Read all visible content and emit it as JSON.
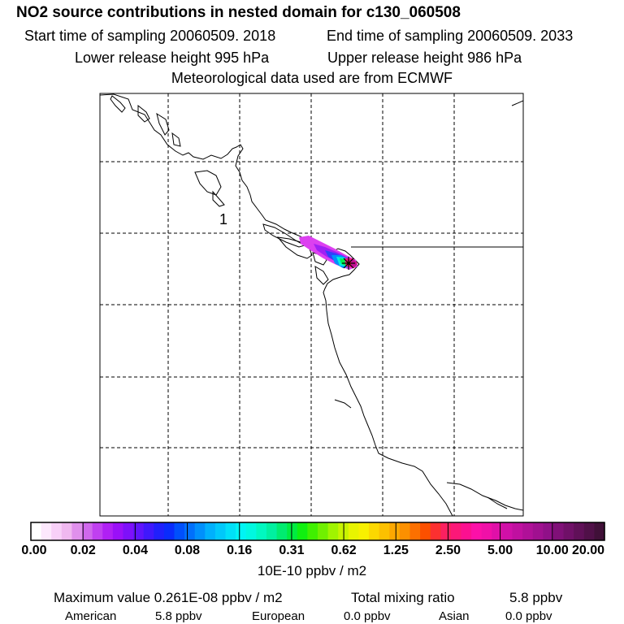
{
  "header": {
    "title": "NO2 source contributions in nested domain for c130_060508",
    "start_time": "Start time of sampling 20060509.  2018",
    "end_time": "End time of sampling 20060509.  2033",
    "lower_height": "Lower release height  995 hPa",
    "upper_height": "Upper release height  986 hPa",
    "met_data": "Meteorological data used are from ECMWF"
  },
  "map": {
    "marker_label": "1",
    "release_marker": "star-icon"
  },
  "colorbar": {
    "ticks": [
      "0.00",
      "0.02",
      "0.04",
      "0.08",
      "0.16",
      "0.31",
      "0.62",
      "1.25",
      "2.50",
      "5.00",
      "10.00",
      "20.00"
    ],
    "unit": "10E-10 ppbv / m2",
    "colors": [
      "#ffffff",
      "#fde8fd",
      "#f8d0f8",
      "#f0b8f0",
      "#e090ec",
      "#d068ec",
      "#c040f0",
      "#b020f4",
      "#9a10f8",
      "#7e10fa",
      "#6014fc",
      "#4018fc",
      "#2020fc",
      "#0a2cfc",
      "#0050fc",
      "#0070fc",
      "#0090fc",
      "#00b0fc",
      "#00c8fa",
      "#00e0f8",
      "#00f4f4",
      "#00f8e0",
      "#00f8c0",
      "#00f0a0",
      "#00ec70",
      "#00ec40",
      "#10f010",
      "#40f000",
      "#70f000",
      "#a0f400",
      "#c8f400",
      "#e8f400",
      "#f8f000",
      "#fcd800",
      "#fcc000",
      "#fca800",
      "#fc9000",
      "#fc7000",
      "#fc5000",
      "#fc3030",
      "#fc2060",
      "#fc1878",
      "#fc1090",
      "#fc10a8",
      "#f010a8",
      "#e010a8",
      "#d010a8",
      "#c010a0",
      "#b01098",
      "#a01090",
      "#901088",
      "#801078",
      "#701068",
      "#601058",
      "#501048",
      "#401038"
    ]
  },
  "footer": {
    "max_value": "Maximum value  0.261E-08 ppbv / m2",
    "total_label": "Total mixing ratio",
    "total_value": "5.8 ppbv",
    "american_label": "American",
    "american_value": "5.8 ppbv",
    "european_label": "European",
    "european_value": "0.0 ppbv",
    "asian_label": "Asian",
    "asian_value": "0.0 ppbv"
  }
}
